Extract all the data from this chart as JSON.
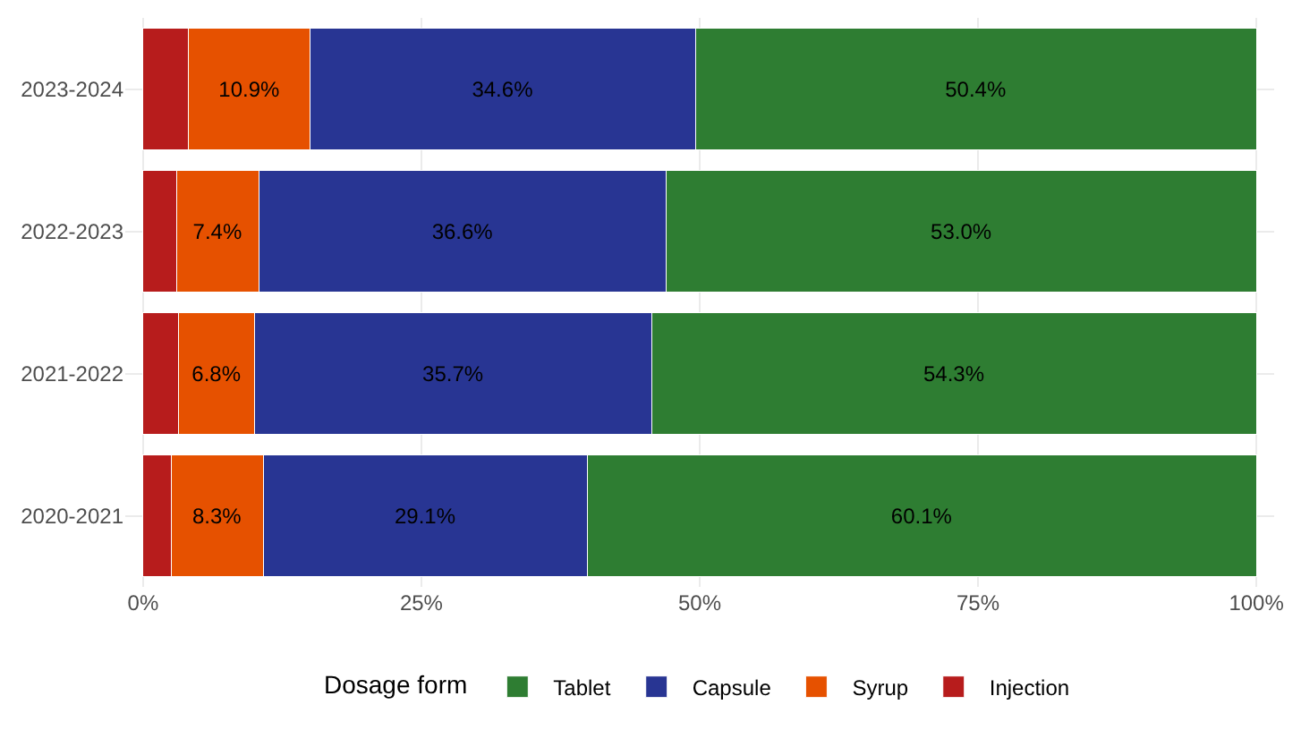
{
  "chart_data": {
    "type": "bar",
    "orientation": "horizontal",
    "stacked": true,
    "legend_title": "Dosage form",
    "legend": "bottom",
    "grid": true,
    "categories": [
      "2023-2024",
      "2022-2023",
      "2021-2022",
      "2020-2021"
    ],
    "xlim": [
      -1.6,
      101.6
    ],
    "xticks": [
      {
        "value": 0,
        "label": "0%"
      },
      {
        "value": 25,
        "label": "25%"
      },
      {
        "value": 50,
        "label": "50%"
      },
      {
        "value": 75,
        "label": "75%"
      },
      {
        "value": 100,
        "label": "100%"
      }
    ],
    "series": [
      {
        "name": "Injection",
        "color": "#b71c1c",
        "values": [
          4.1,
          3.0,
          3.2,
          2.5
        ],
        "value_labels": [
          null,
          null,
          null,
          null
        ]
      },
      {
        "name": "Syrup",
        "color": "#e65100",
        "values": [
          10.9,
          7.4,
          6.8,
          8.3
        ],
        "value_labels": [
          "10.9%",
          "7.4%",
          "6.8%",
          "8.3%"
        ]
      },
      {
        "name": "Capsule",
        "color": "#283593",
        "values": [
          34.6,
          36.6,
          35.7,
          29.1
        ],
        "value_labels": [
          "34.6%",
          "36.6%",
          "35.7%",
          "29.1%"
        ]
      },
      {
        "name": "Tablet",
        "color": "#2e7d32",
        "values": [
          50.4,
          53.0,
          54.3,
          60.1
        ],
        "value_labels": [
          "50.4%",
          "53.0%",
          "54.3%",
          "60.1%"
        ]
      }
    ]
  }
}
